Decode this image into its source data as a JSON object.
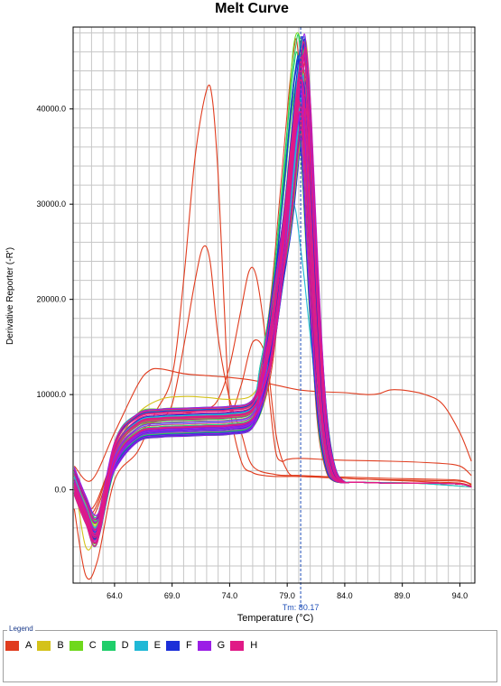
{
  "chart_data": {
    "type": "line",
    "title": "Melt Curve",
    "xlabel": "Temperature (°C)",
    "ylabel": "Derivative Reporter (-R')",
    "xlim": [
      60.4,
      95.3
    ],
    "ylim": [
      -9800,
      48600
    ],
    "x_ticks": [
      64.0,
      69.0,
      74.0,
      79.0,
      84.0,
      89.0,
      94.0
    ],
    "x_tick_labels": [
      "64.0",
      "69.0",
      "74.0",
      "79.0",
      "84.0",
      "89.0",
      "94.0"
    ],
    "y_ticks": [
      0,
      10000,
      20000,
      30000,
      40000
    ],
    "y_tick_labels": [
      "0.0",
      "10000.0",
      "20000.0",
      "30000.0",
      "40000.0"
    ],
    "grid": true,
    "tm_marker": {
      "x": 80.17,
      "label": "Tm: 80.17"
    },
    "typical_profile": {
      "x": [
        60.5,
        61.5,
        62.5,
        64.0,
        66.0,
        68.0,
        70.0,
        72.0,
        74.0,
        76.0,
        77.0,
        78.0,
        79.0,
        79.6,
        80.0,
        80.3,
        80.7,
        81.3,
        82.0,
        82.7,
        83.5,
        85.0,
        88.0,
        91.0,
        94.0,
        95.0
      ],
      "y": [
        1500,
        -1500,
        -3500,
        3500,
        6500,
        7000,
        7100,
        7200,
        7300,
        8000,
        12000,
        20000,
        32000,
        40000,
        44000,
        45000,
        38000,
        22000,
        8000,
        2500,
        900,
        800,
        700,
        700,
        600,
        300
      ]
    },
    "series": [
      {
        "name": "A",
        "color": "#e03c1e",
        "count": 7,
        "outliers": [
          {
            "x": [
              60.5,
              61.5,
              62.5,
              64.0,
              66.0,
              67.5,
              69.0,
              70.0,
              71.0,
              72.0,
              72.5,
              73.0,
              73.5,
              74.0,
              75.0,
              76.0,
              77.0,
              78.0,
              79.0,
              80.0,
              82.0,
              84.0,
              86.0,
              88.0,
              90.0,
              92.0,
              94.0,
              95.0
            ],
            "y": [
              -2000,
              -9000,
              -7500,
              1000,
              4000,
              8000,
              12000,
              22000,
              35000,
              42000,
              41000,
              33000,
              20000,
              9000,
              3000,
              1800,
              1500,
              1400,
              1400,
              1400,
              1300,
              1200,
              1100,
              1000,
              900,
              800,
              700,
              400
            ]
          },
          {
            "x": [
              60.5,
              62.0,
              64.0,
              66.0,
              68.0,
              69.0,
              70.0,
              71.0,
              71.7,
              72.3,
              73.0,
              74.0,
              75.0,
              76.0,
              78.0,
              80.0,
              82.0,
              84.0,
              86.0,
              90.0,
              94.0,
              95.0
            ],
            "y": [
              0,
              -3000,
              3000,
              6000,
              7500,
              9000,
              15000,
              22000,
              25500,
              24000,
              16000,
              9500,
              6000,
              2500,
              1600,
              1500,
              1400,
              1200,
              1100,
              1000,
              900,
              500
            ]
          },
          {
            "x": [
              60.5,
              62.0,
              64.0,
              66.0,
              68.0,
              70.0,
              72.0,
              73.0,
              74.0,
              75.0,
              75.7,
              76.3,
              77.0,
              78.0,
              79.0,
              80.0,
              82.0,
              85.0,
              88.0,
              92.0,
              94.0,
              95.0
            ],
            "y": [
              1000,
              -2000,
              3500,
              6500,
              7500,
              8000,
              8500,
              9500,
              13000,
              19000,
              23000,
              22500,
              17000,
              6000,
              2000,
              1500,
              1400,
              1300,
              1200,
              1100,
              1000,
              600
            ]
          },
          {
            "x": [
              60.5,
              62.0,
              64.0,
              66.0,
              67.0,
              68.0,
              70.0,
              72.0,
              74.0,
              76.0,
              78.0,
              80.0,
              82.0,
              84.0,
              86.0,
              87.0,
              88.0,
              89.5,
              91.0,
              92.5,
              94.0,
              95.0
            ],
            "y": [
              2500,
              1000,
              6000,
              11000,
              12500,
              12700,
              12200,
              12000,
              11800,
              11500,
              11000,
              10500,
              10300,
              10200,
              10000,
              10100,
              10500,
              10400,
              10000,
              9000,
              6000,
              3000
            ]
          },
          {
            "x": [
              60.5,
              62.0,
              64.0,
              66.0,
              68.0,
              70.0,
              72.0,
              74.0,
              75.0,
              76.0,
              77.0,
              77.5,
              78.0,
              78.5,
              79.0,
              80.0,
              82.0,
              84.0,
              88.0,
              92.0,
              94.0,
              95.0
            ],
            "y": [
              1000,
              -2500,
              3500,
              6500,
              7200,
              7300,
              7400,
              8000,
              11000,
              15500,
              14500,
              9000,
              4000,
              3000,
              3200,
              3300,
              3200,
              3100,
              3000,
              2800,
              2500,
              1500
            ]
          }
        ]
      },
      {
        "name": "B",
        "color": "#d4c21a",
        "count": 10,
        "outliers": [
          {
            "x": [
              60.5,
              61.5,
              62.5,
              64.0,
              66.0,
              68.0,
              70.0,
              72.0,
              74.0,
              76.0,
              77.0,
              78.0,
              79.0,
              79.6,
              80.0,
              80.3,
              80.7,
              81.3,
              82.0,
              82.7,
              83.5,
              85.0,
              90.0,
              95.0
            ],
            "y": [
              1500,
              -6000,
              -4000,
              4500,
              8000,
              9500,
              9800,
              9700,
              9500,
              10000,
              13000,
              20000,
              30000,
              34000,
              36000,
              35000,
              30000,
              18000,
              7000,
              2000,
              900,
              800,
              700,
              300
            ]
          }
        ]
      },
      {
        "name": "C",
        "color": "#6fd81c",
        "count": 10,
        "outliers": [
          {
            "x": [
              60.5,
              61.5,
              62.5,
              64.0,
              66.0,
              68.0,
              70.0,
              72.0,
              74.0,
              76.0,
              77.0,
              78.0,
              79.0,
              79.5,
              79.9,
              80.2,
              80.6,
              81.2,
              82.0,
              82.7,
              83.5,
              85.0,
              90.0,
              95.0
            ],
            "y": [
              1500,
              -2000,
              -3000,
              4000,
              8000,
              8500,
              8600,
              8500,
              8400,
              9000,
              13000,
              22000,
              38000,
              46000,
              48000,
              46000,
              38000,
              21000,
              8000,
              2500,
              900,
              800,
              700,
              300
            ]
          }
        ]
      },
      {
        "name": "D",
        "color": "#1fce6a",
        "count": 10,
        "outliers": []
      },
      {
        "name": "E",
        "color": "#20b8d6",
        "count": 10,
        "outliers": [
          {
            "x": [
              60.5,
              61.5,
              62.5,
              64.0,
              66.0,
              68.0,
              70.0,
              72.0,
              74.0,
              76.0,
              77.0,
              78.0,
              79.0,
              79.3,
              79.7,
              80.0,
              80.5,
              81.2,
              82.0,
              82.7,
              83.5,
              85.0,
              90.0,
              95.0
            ],
            "y": [
              1500,
              -2000,
              -5000,
              3000,
              5500,
              6000,
              6200,
              6300,
              6400,
              7000,
              11000,
              20000,
              28000,
              30500,
              29500,
              27000,
              22000,
              14000,
              6000,
              2000,
              900,
              800,
              700,
              300
            ]
          }
        ]
      },
      {
        "name": "F",
        "color": "#1c2fd8",
        "count": 10,
        "outliers": []
      },
      {
        "name": "G",
        "color": "#9b1ee6",
        "count": 10,
        "outliers": []
      },
      {
        "name": "H",
        "color": "#e01a86",
        "count": 12,
        "outliers": []
      }
    ]
  },
  "legend": {
    "title": "Legend",
    "items": [
      {
        "label": "A",
        "color": "#e03c1e"
      },
      {
        "label": "B",
        "color": "#d4c21a"
      },
      {
        "label": "C",
        "color": "#6fd81c"
      },
      {
        "label": "D",
        "color": "#1fce6a"
      },
      {
        "label": "E",
        "color": "#20b8d6"
      },
      {
        "label": "F",
        "color": "#1c2fd8"
      },
      {
        "label": "G",
        "color": "#9b1ee6"
      },
      {
        "label": "H",
        "color": "#e01a86"
      }
    ]
  }
}
